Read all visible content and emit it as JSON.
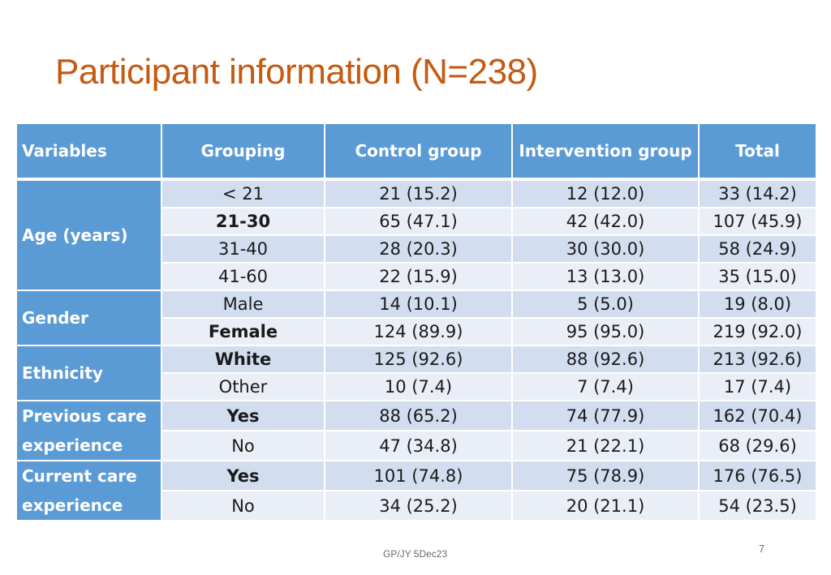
{
  "title": "Participant information (N=238)",
  "table": {
    "headers": [
      "Variables",
      "Grouping",
      "Control group",
      "Intervention group",
      "Total"
    ],
    "variables": {
      "age": "Age (years)",
      "gender": "Gender",
      "ethnicity": "Ethnicity",
      "previous_care": "Previous care experience",
      "current_care": "Current care experience"
    },
    "rows": [
      {
        "grouping": "< 21",
        "control": "21 (15.2)",
        "intervention": "12 (12.0)",
        "total": "33 (14.2)"
      },
      {
        "grouping": "21-30",
        "control": "65 (47.1)",
        "intervention": "42 (42.0)",
        "total": "107 (45.9)"
      },
      {
        "grouping": "31-40",
        "control": "28 (20.3)",
        "intervention": "30 (30.0)",
        "total": "58 (24.9)"
      },
      {
        "grouping": "41-60",
        "control": "22 (15.9)",
        "intervention": "13 (13.0)",
        "total": "35 (15.0)"
      },
      {
        "grouping": "Male",
        "control": "14 (10.1)",
        "intervention": "5 (5.0)",
        "total": "19 (8.0)"
      },
      {
        "grouping": "Female",
        "control": "124 (89.9)",
        "intervention": "95 (95.0)",
        "total": "219 (92.0)"
      },
      {
        "grouping": "White",
        "control": "125 (92.6)",
        "intervention": "88 (92.6)",
        "total": "213 (92.6)"
      },
      {
        "grouping": "Other",
        "control": "10 (7.4)",
        "intervention": "7 (7.4)",
        "total": "17 (7.4)"
      },
      {
        "grouping": "Yes",
        "control": "88 (65.2)",
        "intervention": "74 (77.9)",
        "total": "162 (70.4)"
      },
      {
        "grouping": "No",
        "control": "47 (34.8)",
        "intervention": "21 (22.1)",
        "total": "68 (29.6)"
      },
      {
        "grouping": "Yes",
        "control": "101 (74.8)",
        "intervention": "75 (78.9)",
        "total": "176 (76.5)"
      },
      {
        "grouping": "No",
        "control": "34 (25.2)",
        "intervention": "20 (21.1)",
        "total": "54 (23.5)"
      }
    ]
  },
  "footer": "GP/JY 5Dec23",
  "page_number": "7",
  "colors": {
    "title": "#c55a11",
    "header": "#5b9bd5",
    "row_odd": "#d2deef",
    "row_even": "#eaeff7"
  }
}
